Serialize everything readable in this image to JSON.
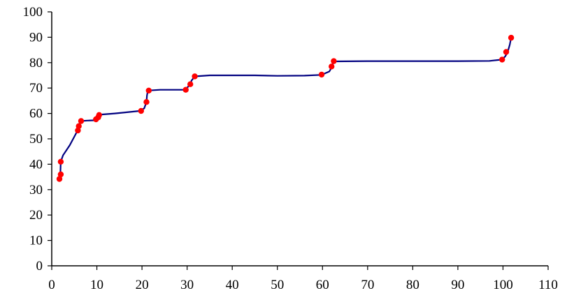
{
  "chart_data": {
    "type": "scatter",
    "title": "",
    "xlabel": "",
    "ylabel": "",
    "xlim": [
      0,
      110
    ],
    "ylim": [
      0,
      100
    ],
    "x_ticks": [
      0,
      10,
      20,
      30,
      40,
      50,
      60,
      70,
      80,
      90,
      100,
      110
    ],
    "y_ticks": [
      0,
      10,
      20,
      30,
      40,
      50,
      60,
      70,
      80,
      90,
      100
    ],
    "grid": false,
    "legend": "none",
    "series": [
      {
        "kind": "line",
        "color": "#000080",
        "points": [
          [
            1.8,
            34.3
          ],
          [
            1.9,
            36.0
          ],
          [
            2.0,
            41.0
          ],
          [
            2.5,
            43.5
          ],
          [
            4.0,
            47.5
          ],
          [
            5.5,
            52.5
          ],
          [
            5.8,
            53.7
          ],
          [
            6.0,
            55.0
          ],
          [
            6.3,
            57.0
          ],
          [
            8.0,
            57.2
          ],
          [
            9.8,
            57.3
          ],
          [
            10.0,
            58.5
          ],
          [
            10.5,
            59.5
          ],
          [
            14.0,
            60.0
          ],
          [
            19.5,
            61.0
          ],
          [
            20.5,
            62.0
          ],
          [
            21.0,
            64.5
          ],
          [
            21.1,
            67.0
          ],
          [
            21.3,
            69.0
          ],
          [
            24.0,
            69.3
          ],
          [
            29.5,
            69.3
          ],
          [
            30.5,
            71.0
          ],
          [
            31.0,
            73.0
          ],
          [
            31.7,
            74.6
          ],
          [
            35.0,
            75.0
          ],
          [
            45.0,
            75.0
          ],
          [
            50.0,
            74.8
          ],
          [
            56.0,
            74.9
          ],
          [
            59.8,
            75.2
          ],
          [
            61.5,
            76.5
          ],
          [
            62.0,
            78.0
          ],
          [
            62.5,
            80.5
          ],
          [
            70.0,
            80.6
          ],
          [
            90.0,
            80.6
          ],
          [
            97.0,
            80.7
          ],
          [
            99.8,
            81.2
          ],
          [
            100.5,
            82.5
          ],
          [
            101.0,
            84.0
          ],
          [
            101.5,
            87.0
          ],
          [
            101.8,
            89.8
          ]
        ]
      },
      {
        "kind": "points",
        "color": "#ff0000",
        "points": [
          [
            1.7,
            34.2
          ],
          [
            2.0,
            36.0
          ],
          [
            2.0,
            41.0
          ],
          [
            5.8,
            53.3
          ],
          [
            6.0,
            55.0
          ],
          [
            6.5,
            57.0
          ],
          [
            9.8,
            57.7
          ],
          [
            10.3,
            58.5
          ],
          [
            10.5,
            59.4
          ],
          [
            19.8,
            61.0
          ],
          [
            21.0,
            64.5
          ],
          [
            21.5,
            69.0
          ],
          [
            29.7,
            69.3
          ],
          [
            30.7,
            71.5
          ],
          [
            31.7,
            74.6
          ],
          [
            59.8,
            75.3
          ],
          [
            62.0,
            78.5
          ],
          [
            62.5,
            80.6
          ],
          [
            99.8,
            81.2
          ],
          [
            100.7,
            84.2
          ],
          [
            101.8,
            89.8
          ]
        ]
      }
    ]
  }
}
